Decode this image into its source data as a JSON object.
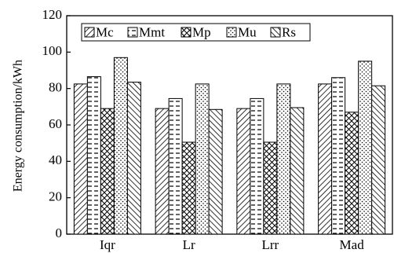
{
  "chart_data": {
    "type": "bar",
    "title": "",
    "xlabel": "",
    "ylabel": "Energy consumption/kWh",
    "ylim": [
      0,
      120
    ],
    "yticks": [
      0,
      20,
      40,
      60,
      80,
      100,
      120
    ],
    "grid": false,
    "legend_position": "top-left",
    "categories": [
      "Iqr",
      "Lr",
      "Lrr",
      "Mad"
    ],
    "series": [
      {
        "name": "Mc",
        "pattern": "diag-down-hatch",
        "values": [
          82.5,
          69,
          69,
          82.5
        ]
      },
      {
        "name": "Mmt",
        "pattern": "horizontal-dash",
        "values": [
          86.5,
          74.5,
          74.5,
          86
        ]
      },
      {
        "name": "Mp",
        "pattern": "crosshatch",
        "values": [
          69,
          50.5,
          50.5,
          67
        ]
      },
      {
        "name": "Mu",
        "pattern": "dots",
        "values": [
          97,
          82.5,
          82.5,
          95
        ]
      },
      {
        "name": "Rs",
        "pattern": "diag-up-hatch",
        "values": [
          83.5,
          68.5,
          69.5,
          81.5
        ]
      }
    ]
  }
}
